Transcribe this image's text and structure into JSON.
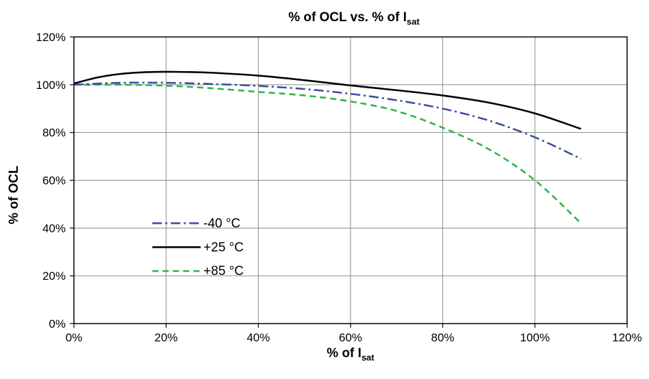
{
  "chart_data": {
    "type": "line",
    "title": {
      "main": "% of OCL vs. % of I",
      "sub": "sat"
    },
    "xlabel": {
      "main": "% of I",
      "sub": "sat"
    },
    "ylabel": "% of OCL",
    "xlim": [
      0,
      120
    ],
    "ylim": [
      0,
      120
    ],
    "x_ticks": [
      0,
      20,
      40,
      60,
      80,
      100,
      120
    ],
    "y_ticks": [
      0,
      20,
      40,
      60,
      80,
      100,
      120
    ],
    "x_tick_labels": [
      "0%",
      "20%",
      "40%",
      "60%",
      "80%",
      "100%",
      "120%"
    ],
    "y_tick_labels": [
      "0%",
      "20%",
      "40%",
      "60%",
      "80%",
      "100%",
      "120%"
    ],
    "grid": true,
    "legend_position": "left-bottom",
    "series": [
      {
        "name": "-40 °C",
        "color": "#3b4ea0",
        "style": "dash-dot",
        "x": [
          0,
          10,
          20,
          30,
          40,
          50,
          60,
          70,
          80,
          90,
          100,
          110
        ],
        "y": [
          100,
          100.8,
          100.8,
          100.3,
          99.5,
          98.2,
          96.2,
          93.5,
          90,
          85,
          78,
          69
        ]
      },
      {
        "name": "+25 °C",
        "color": "#000000",
        "style": "solid",
        "x": [
          0,
          5,
          10,
          15,
          20,
          25,
          30,
          40,
          50,
          60,
          70,
          80,
          90,
          100,
          110
        ],
        "y": [
          100.5,
          103,
          104.5,
          105.2,
          105.4,
          105.3,
          105,
          103.8,
          101.9,
          99.7,
          97.7,
          95.5,
          92.5,
          88,
          81.5
        ]
      },
      {
        "name": "+85 °C",
        "color": "#2db34a",
        "style": "dashed",
        "x": [
          0,
          10,
          20,
          30,
          40,
          50,
          60,
          70,
          80,
          90,
          100,
          110
        ],
        "y": [
          100,
          100,
          99.6,
          98.5,
          97,
          95.5,
          93,
          89,
          82,
          73,
          60,
          42
        ]
      }
    ]
  }
}
